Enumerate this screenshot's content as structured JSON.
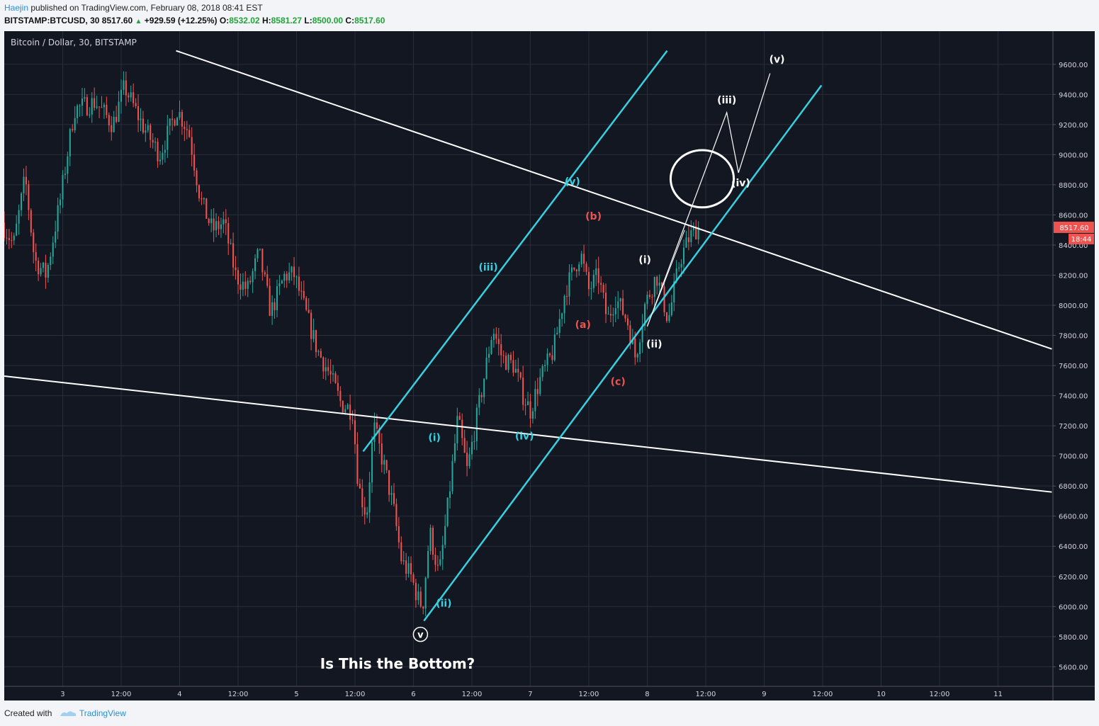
{
  "header": {
    "user": "Haejin",
    "published": "published on TradingView.com, February 08, 2018 08:41 EST",
    "symbol": "BITSTAMP:BTCUSD, 30",
    "last": "8517.60",
    "change": "+929.59 (+12.25%)",
    "o_label": "O:",
    "o_value": "8532.02",
    "h_label": "H:",
    "h_value": "8581.27",
    "l_label": "L:",
    "l_value": "8500.00",
    "c_label": "C:",
    "c_value": "8517.60"
  },
  "footer": {
    "created_with": "Created with",
    "brand": "TradingView"
  },
  "colors": {
    "background": "#131722",
    "grid": "#2a2e39",
    "up": "#26a69a",
    "down": "#ef5350",
    "channel": "#38d0e0",
    "trendline": "#ffffff",
    "wave_cyan": "#38d0e0",
    "wave_red": "#ef5350",
    "wave_white": "#ffffff",
    "price_tag": "#ef5350"
  },
  "chart_data": {
    "type": "candlestick",
    "title": "Bitcoin / Dollar, 30, BITSTAMP",
    "annotation": "Is This the Bottom?",
    "y_ticks": [
      5600,
      5800,
      6000,
      6200,
      6400,
      6600,
      6800,
      7000,
      7200,
      7400,
      7600,
      7800,
      8000,
      8200,
      8400,
      8600,
      8800,
      9000,
      9200,
      9400,
      9600
    ],
    "y_tick_labels": [
      "5600.00",
      "5800.00",
      "6000.00",
      "6200.00",
      "6400.00",
      "6600.00",
      "6800.00",
      "7000.00",
      "7200.00",
      "7400.00",
      "7600.00",
      "7800.00",
      "8000.00",
      "8200.00",
      "8400.00",
      "8600.00",
      "8800.00",
      "9000.00",
      "9200.00",
      "9400.00",
      "9600.00"
    ],
    "ylim": [
      5470,
      9820
    ],
    "x_ticks": [
      {
        "label": "3",
        "t": 0.5
      },
      {
        "label": "12:00",
        "t": 1.0
      },
      {
        "label": "4",
        "t": 1.5
      },
      {
        "label": "12:00",
        "t": 2.0
      },
      {
        "label": "5",
        "t": 2.5
      },
      {
        "label": "12:00",
        "t": 3.0
      },
      {
        "label": "6",
        "t": 3.5
      },
      {
        "label": "12:00",
        "t": 4.0
      },
      {
        "label": "7",
        "t": 4.5
      },
      {
        "label": "12:00",
        "t": 5.0
      },
      {
        "label": "8",
        "t": 5.5
      },
      {
        "label": "12:00",
        "t": 6.0
      },
      {
        "label": "9",
        "t": 6.5
      },
      {
        "label": "12:00",
        "t": 7.0
      },
      {
        "label": "10",
        "t": 7.5
      },
      {
        "label": "12:00",
        "t": 8.0
      },
      {
        "label": "11",
        "t": 8.5
      }
    ],
    "xlim": [
      0.0,
      8.97
    ],
    "last_price_label": "8517.60",
    "countdown_label": "18:44",
    "last_price": 8517.6,
    "path": [
      [
        0.0,
        8550
      ],
      [
        0.1,
        8400
      ],
      [
        0.2,
        8850
      ],
      [
        0.28,
        8300
      ],
      [
        0.38,
        8200
      ],
      [
        0.5,
        8700
      ],
      [
        0.62,
        9300
      ],
      [
        0.8,
        9350
      ],
      [
        0.95,
        9200
      ],
      [
        1.05,
        9450
      ],
      [
        1.2,
        9200
      ],
      [
        1.35,
        9000
      ],
      [
        1.5,
        9300
      ],
      [
        1.6,
        9150
      ],
      [
        1.7,
        8700
      ],
      [
        1.8,
        8500
      ],
      [
        1.9,
        8550
      ],
      [
        2.0,
        8200
      ],
      [
        2.1,
        8100
      ],
      [
        2.2,
        8350
      ],
      [
        2.3,
        7950
      ],
      [
        2.42,
        8200
      ],
      [
        2.5,
        8200
      ],
      [
        2.6,
        7950
      ],
      [
        2.7,
        7700
      ],
      [
        2.8,
        7550
      ],
      [
        2.9,
        7350
      ],
      [
        3.0,
        7300
      ],
      [
        3.05,
        6800
      ],
      [
        3.12,
        6600
      ],
      [
        3.18,
        7200
      ],
      [
        3.28,
        6900
      ],
      [
        3.35,
        6650
      ],
      [
        3.42,
        6300
      ],
      [
        3.5,
        6200
      ],
      [
        3.56,
        6050
      ],
      [
        3.6,
        6000
      ],
      [
        3.66,
        6500
      ],
      [
        3.74,
        6200
      ],
      [
        3.82,
        6700
      ],
      [
        3.9,
        7250
      ],
      [
        3.98,
        6900
      ],
      [
        4.05,
        7200
      ],
      [
        4.12,
        7500
      ],
      [
        4.2,
        7850
      ],
      [
        4.28,
        7650
      ],
      [
        4.38,
        7600
      ],
      [
        4.46,
        7400
      ],
      [
        4.52,
        7300
      ],
      [
        4.6,
        7500
      ],
      [
        4.72,
        7700
      ],
      [
        4.82,
        8100
      ],
      [
        4.9,
        8250
      ],
      [
        4.95,
        8350
      ],
      [
        5.02,
        8100
      ],
      [
        5.1,
        8200
      ],
      [
        5.18,
        7900
      ],
      [
        5.25,
        8050
      ],
      [
        5.35,
        7900
      ],
      [
        5.42,
        7650
      ],
      [
        5.5,
        8000
      ],
      [
        5.6,
        8200
      ],
      [
        5.7,
        7900
      ],
      [
        5.8,
        8300
      ],
      [
        5.88,
        8450
      ],
      [
        5.95,
        8517
      ]
    ]
  },
  "trendlines": [
    {
      "name": "upper-trendline",
      "p1": [
        1.47,
        9690
      ],
      "p2": [
        8.96,
        7710
      ]
    },
    {
      "name": "lower-trendline",
      "p1": [
        0.0,
        7530
      ],
      "p2": [
        8.96,
        6760
      ]
    }
  ],
  "channel_lines": [
    {
      "name": "channel-upper",
      "p1": [
        3.07,
        7030
      ],
      "p2": [
        5.67,
        9690
      ]
    },
    {
      "name": "channel-lower",
      "p1": [
        3.59,
        5905
      ],
      "p2": [
        6.99,
        9460
      ]
    }
  ],
  "projection": [
    [
      5.5,
      7860
    ],
    [
      6.18,
      9280
    ],
    [
      6.28,
      8880
    ],
    [
      6.55,
      9540
    ]
  ],
  "projection_wedge": [
    [
      5.5,
      7860
    ],
    [
      5.82,
      8500
    ]
  ],
  "circle": {
    "center": [
      5.97,
      8840
    ],
    "rx": 0.27,
    "ry": 190
  },
  "bottom_marker": {
    "label": "v",
    "t": 3.56,
    "price": 5815
  },
  "waves": [
    {
      "label": "(i)",
      "t": 3.68,
      "price": 7100,
      "color": "cyan"
    },
    {
      "label": "(ii)",
      "t": 3.76,
      "price": 6000,
      "color": "cyan"
    },
    {
      "label": "(iii)",
      "t": 4.14,
      "price": 8230,
      "color": "cyan"
    },
    {
      "label": "(iv)",
      "t": 4.45,
      "price": 7110,
      "color": "cyan"
    },
    {
      "label": "(v)",
      "t": 4.86,
      "price": 8800,
      "color": "cyan"
    },
    {
      "label": "(a)",
      "t": 4.95,
      "price": 7850,
      "color": "red"
    },
    {
      "label": "(b)",
      "t": 5.04,
      "price": 8570,
      "color": "red"
    },
    {
      "label": "(c)",
      "t": 5.25,
      "price": 7470,
      "color": "red"
    },
    {
      "label": "(i)",
      "t": 5.48,
      "price": 8280,
      "color": "white"
    },
    {
      "label": "(ii)",
      "t": 5.56,
      "price": 7720,
      "color": "white"
    },
    {
      "label": "(iii)",
      "t": 6.18,
      "price": 9340,
      "color": "white"
    },
    {
      "label": "(iv)",
      "t": 6.3,
      "price": 8790,
      "color": "white"
    },
    {
      "label": "(v)",
      "t": 6.61,
      "price": 9610,
      "color": "white"
    }
  ]
}
